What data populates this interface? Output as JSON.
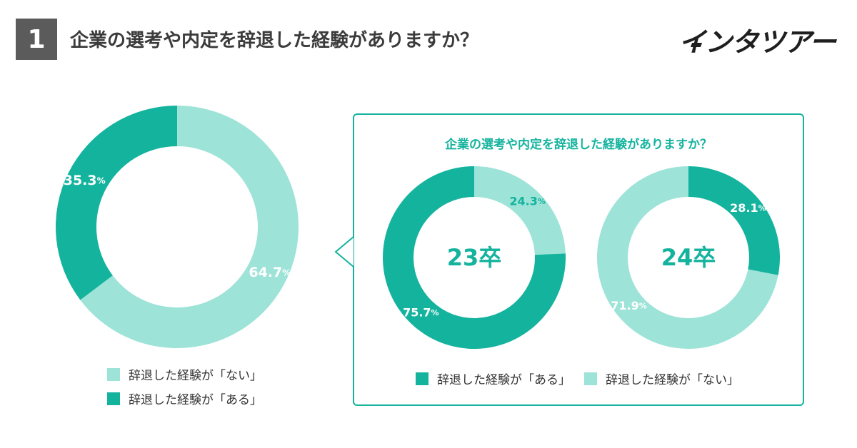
{
  "header": {
    "number": "1",
    "title": "企業の選考や内定を辞退した経験がありますか？",
    "brand": "インタツアー"
  },
  "colors": {
    "aru": "#14b39e",
    "nai": "#9de3d8",
    "panel_border": "#14b39e",
    "header_box": "#5b5b5b"
  },
  "chart_data": [
    {
      "type": "pie",
      "variant": "donut",
      "labels": [
        "辞退した経験が「ない」",
        "辞退した経験が「ある」"
      ],
      "values": [
        64.7,
        35.3
      ],
      "value_labels": [
        "64.7",
        "35.3"
      ],
      "unit": "%",
      "legend_placement": "bottom"
    },
    {
      "type": "pie",
      "variant": "donut",
      "title": "企業の選考や内定を辞退した経験がありますか？",
      "center_label": "23卒",
      "labels": [
        "辞退した経験が「ない」",
        "辞退した経験が「ある」"
      ],
      "values": [
        24.3,
        75.7
      ],
      "value_labels": [
        "24.3",
        "75.7"
      ],
      "unit": "%",
      "legend_placement": "bottom"
    },
    {
      "type": "pie",
      "variant": "donut",
      "center_label": "24卒",
      "labels": [
        "辞退した経験が「ない」",
        "辞退した経験が「ある」"
      ],
      "values": [
        71.9,
        28.1
      ],
      "value_labels": [
        "71.9",
        "28.1"
      ],
      "unit": "%",
      "legend_placement": "bottom"
    }
  ],
  "legend_left": [
    {
      "label": "辞退した経験が「ない」",
      "key": "nai"
    },
    {
      "label": "辞退した経験が「ある」",
      "key": "aru"
    }
  ],
  "legend_panel": [
    {
      "label": "辞退した経験が「ある」",
      "key": "aru"
    },
    {
      "label": "辞退した経験が「ない」",
      "key": "nai"
    }
  ]
}
